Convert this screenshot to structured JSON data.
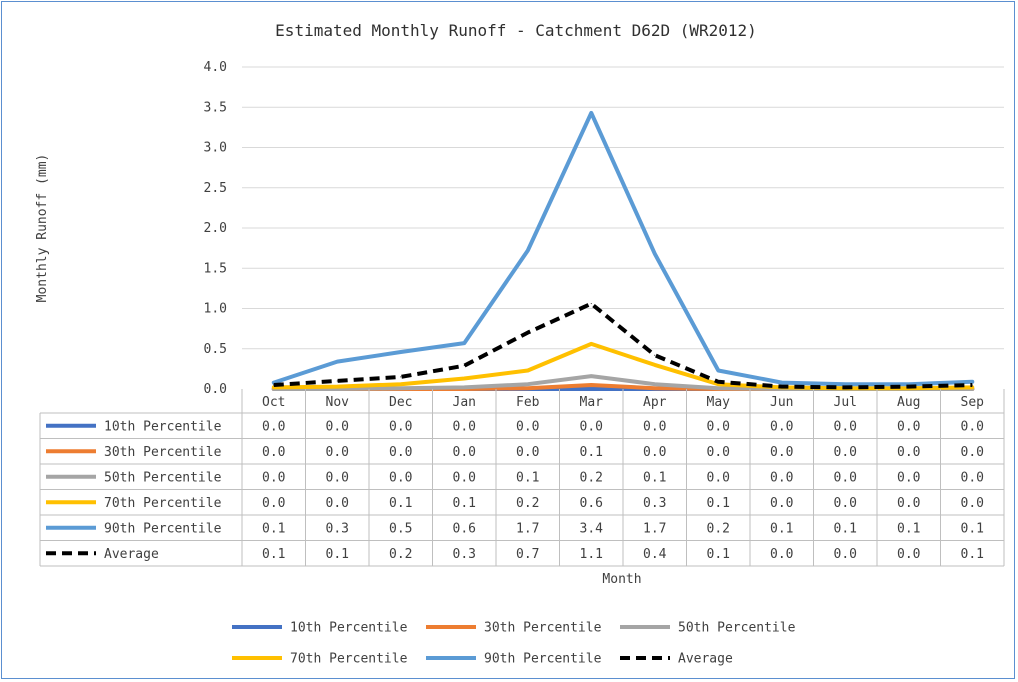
{
  "chart_data": {
    "type": "line",
    "title": "Estimated Monthly Runoff - Catchment D62D (WR2012)",
    "xlabel": "Month",
    "ylabel": "Monthly Runoff (mm)",
    "ylim": [
      0,
      4.0
    ],
    "y_ticks": [
      "0.0",
      "0.5",
      "1.0",
      "1.5",
      "2.0",
      "2.5",
      "3.0",
      "3.5",
      "4.0"
    ],
    "grid": true,
    "legend_position": "bottom",
    "data_table": true,
    "categories": [
      "Oct",
      "Nov",
      "Dec",
      "Jan",
      "Feb",
      "Mar",
      "Apr",
      "May",
      "Jun",
      "Jul",
      "Aug",
      "Sep"
    ],
    "series": [
      {
        "name": "10th Percentile",
        "color": "#4472c4",
        "dashed": false,
        "values": [
          0.0,
          0.0,
          0.0,
          0.0,
          0.0,
          0.0,
          0.0,
          0.0,
          0.0,
          0.0,
          0.0,
          0.0
        ],
        "labels": [
          "0.0",
          "0.0",
          "0.0",
          "0.0",
          "0.0",
          "0.0",
          "0.0",
          "0.0",
          "0.0",
          "0.0",
          "0.0",
          "0.0"
        ]
      },
      {
        "name": "30th Percentile",
        "color": "#ed7d31",
        "dashed": false,
        "values": [
          0.0,
          0.0,
          0.0,
          0.0,
          0.01,
          0.05,
          0.01,
          0.0,
          0.0,
          0.0,
          0.0,
          0.0
        ],
        "labels": [
          "0.0",
          "0.0",
          "0.0",
          "0.0",
          "0.0",
          "0.1",
          "0.0",
          "0.0",
          "0.0",
          "0.0",
          "0.0",
          "0.0"
        ]
      },
      {
        "name": "50th Percentile",
        "color": "#a5a5a5",
        "dashed": false,
        "values": [
          0.0,
          0.0,
          0.01,
          0.02,
          0.06,
          0.16,
          0.06,
          0.01,
          0.0,
          0.0,
          0.0,
          0.0
        ],
        "labels": [
          "0.0",
          "0.0",
          "0.0",
          "0.0",
          "0.1",
          "0.2",
          "0.1",
          "0.0",
          "0.0",
          "0.0",
          "0.0",
          "0.0"
        ]
      },
      {
        "name": "70th Percentile",
        "color": "#ffc000",
        "dashed": false,
        "values": [
          0.02,
          0.03,
          0.06,
          0.13,
          0.23,
          0.56,
          0.3,
          0.06,
          0.02,
          0.01,
          0.01,
          0.02
        ],
        "labels": [
          "0.0",
          "0.0",
          "0.1",
          "0.1",
          "0.2",
          "0.6",
          "0.3",
          "0.1",
          "0.0",
          "0.0",
          "0.0",
          "0.0"
        ]
      },
      {
        "name": "90th Percentile",
        "color": "#5b9bd5",
        "dashed": false,
        "values": [
          0.08,
          0.34,
          0.46,
          0.57,
          1.72,
          3.43,
          1.68,
          0.23,
          0.08,
          0.06,
          0.06,
          0.09
        ],
        "labels": [
          "0.1",
          "0.3",
          "0.5",
          "0.6",
          "1.7",
          "3.4",
          "1.7",
          "0.2",
          "0.1",
          "0.1",
          "0.1",
          "0.1"
        ]
      },
      {
        "name": "Average",
        "color": "#000000",
        "dashed": true,
        "values": [
          0.05,
          0.1,
          0.15,
          0.29,
          0.7,
          1.06,
          0.42,
          0.09,
          0.03,
          0.02,
          0.03,
          0.05
        ],
        "labels": [
          "0.1",
          "0.1",
          "0.2",
          "0.3",
          "0.7",
          "1.1",
          "0.4",
          "0.1",
          "0.0",
          "0.0",
          "0.0",
          "0.1"
        ]
      }
    ]
  }
}
